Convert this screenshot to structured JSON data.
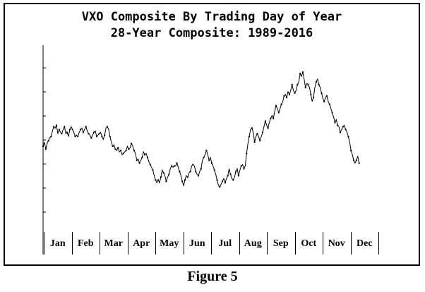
{
  "figure_caption": "Figure 5",
  "chart_data": {
    "type": "line",
    "title": "VXO Composite By Trading Day of Year",
    "subtitle": "28-Year Composite: 1989-2016",
    "xlabel": "",
    "ylabel": "",
    "categories": [
      "Jan",
      "Feb",
      "Mar",
      "Apr",
      "May",
      "Jun",
      "Jul",
      "Aug",
      "Sep",
      "Oct",
      "Nov",
      "Dec"
    ],
    "x_unit": "trading day of year",
    "xlim": [
      1,
      252
    ],
    "ylim": [
      0,
      100
    ],
    "grid": false,
    "legend": "none",
    "line_color": "#000000",
    "series": [
      {
        "values": [
          [
            1,
            48
          ],
          [
            2,
            51
          ],
          [
            3,
            46
          ],
          [
            4,
            50
          ],
          [
            5,
            52
          ],
          [
            6,
            54
          ],
          [
            7,
            55
          ],
          [
            8,
            59
          ],
          [
            9,
            62
          ],
          [
            10,
            61
          ],
          [
            11,
            63
          ],
          [
            12,
            57
          ],
          [
            13,
            60
          ],
          [
            14,
            58
          ],
          [
            15,
            57
          ],
          [
            16,
            60
          ],
          [
            17,
            62
          ],
          [
            18,
            57
          ],
          [
            19,
            58
          ],
          [
            20,
            55
          ],
          [
            21,
            60
          ],
          [
            22,
            62
          ],
          [
            23,
            60
          ],
          [
            24,
            58
          ],
          [
            25,
            55
          ],
          [
            26,
            56
          ],
          [
            27,
            55
          ],
          [
            28,
            58
          ],
          [
            29,
            60
          ],
          [
            30,
            61
          ],
          [
            31,
            58
          ],
          [
            32,
            60
          ],
          [
            33,
            62
          ],
          [
            34,
            59
          ],
          [
            35,
            57
          ],
          [
            36,
            56
          ],
          [
            37,
            54
          ],
          [
            38,
            56
          ],
          [
            39,
            58
          ],
          [
            40,
            59
          ],
          [
            41,
            55
          ],
          [
            42,
            56
          ],
          [
            43,
            57
          ],
          [
            44,
            58
          ],
          [
            45,
            55
          ],
          [
            46,
            53
          ],
          [
            47,
            56
          ],
          [
            48,
            61
          ],
          [
            49,
            62
          ],
          [
            50,
            60
          ],
          [
            51,
            55
          ],
          [
            52,
            51
          ],
          [
            53,
            48
          ],
          [
            54,
            49
          ],
          [
            55,
            46
          ],
          [
            56,
            45
          ],
          [
            57,
            47
          ],
          [
            58,
            44
          ],
          [
            59,
            45
          ],
          [
            60,
            42
          ],
          [
            61,
            43
          ],
          [
            62,
            44
          ],
          [
            63,
            45
          ],
          [
            64,
            48
          ],
          [
            65,
            46
          ],
          [
            66,
            47
          ],
          [
            67,
            50
          ],
          [
            68,
            48
          ],
          [
            69,
            45
          ],
          [
            70,
            43
          ],
          [
            71,
            38
          ],
          [
            72,
            39
          ],
          [
            73,
            36
          ],
          [
            74,
            38
          ],
          [
            75,
            40
          ],
          [
            76,
            44
          ],
          [
            77,
            42
          ],
          [
            78,
            43
          ],
          [
            79,
            40
          ],
          [
            80,
            37
          ],
          [
            81,
            35
          ],
          [
            82,
            33
          ],
          [
            83,
            31
          ],
          [
            84,
            27
          ],
          [
            85,
            24
          ],
          [
            86,
            22
          ],
          [
            87,
            24
          ],
          [
            88,
            22
          ],
          [
            89,
            26
          ],
          [
            90,
            31
          ],
          [
            91,
            29
          ],
          [
            92,
            27
          ],
          [
            93,
            23
          ],
          [
            94,
            26
          ],
          [
            95,
            28
          ],
          [
            96,
            32
          ],
          [
            97,
            34
          ],
          [
            98,
            33
          ],
          [
            99,
            34
          ],
          [
            100,
            34
          ],
          [
            101,
            36
          ],
          [
            102,
            33
          ],
          [
            103,
            30
          ],
          [
            104,
            27
          ],
          [
            105,
            23
          ],
          [
            106,
            20
          ],
          [
            107,
            24
          ],
          [
            108,
            27
          ],
          [
            109,
            26
          ],
          [
            110,
            29
          ],
          [
            111,
            30
          ],
          [
            112,
            34
          ],
          [
            113,
            35
          ],
          [
            114,
            34
          ],
          [
            115,
            30
          ],
          [
            116,
            28
          ],
          [
            117,
            27
          ],
          [
            118,
            30
          ],
          [
            119,
            32
          ],
          [
            120,
            38
          ],
          [
            121,
            40
          ],
          [
            122,
            42
          ],
          [
            123,
            45
          ],
          [
            124,
            42
          ],
          [
            125,
            38
          ],
          [
            126,
            40
          ],
          [
            127,
            36
          ],
          [
            128,
            34
          ],
          [
            129,
            31
          ],
          [
            130,
            28
          ],
          [
            131,
            24
          ],
          [
            132,
            20
          ],
          [
            133,
            19
          ],
          [
            134,
            21
          ],
          [
            135,
            23
          ],
          [
            136,
            25
          ],
          [
            137,
            22
          ],
          [
            138,
            25
          ],
          [
            139,
            27
          ],
          [
            140,
            32
          ],
          [
            141,
            28
          ],
          [
            142,
            25
          ],
          [
            143,
            24
          ],
          [
            144,
            26
          ],
          [
            145,
            30
          ],
          [
            146,
            32
          ],
          [
            147,
            27
          ],
          [
            148,
            31
          ],
          [
            149,
            34
          ],
          [
            150,
            35
          ],
          [
            151,
            32
          ],
          [
            152,
            34
          ],
          [
            153,
            43
          ],
          [
            154,
            50
          ],
          [
            155,
            55
          ],
          [
            156,
            60
          ],
          [
            157,
            61
          ],
          [
            158,
            58
          ],
          [
            159,
            51
          ],
          [
            160,
            55
          ],
          [
            161,
            57
          ],
          [
            162,
            55
          ],
          [
            163,
            52
          ],
          [
            164,
            55
          ],
          [
            165,
            58
          ],
          [
            166,
            62
          ],
          [
            167,
            66
          ],
          [
            168,
            63
          ],
          [
            169,
            61
          ],
          [
            170,
            65
          ],
          [
            171,
            68
          ],
          [
            172,
            70
          ],
          [
            173,
            68
          ],
          [
            174,
            73
          ],
          [
            175,
            77
          ],
          [
            176,
            75
          ],
          [
            177,
            72
          ],
          [
            178,
            75
          ],
          [
            179,
            78
          ],
          [
            180,
            80
          ],
          [
            181,
            84
          ],
          [
            182,
            85
          ],
          [
            183,
            83
          ],
          [
            184,
            87
          ],
          [
            185,
            85
          ],
          [
            186,
            88
          ],
          [
            187,
            92
          ],
          [
            188,
            88
          ],
          [
            189,
            86
          ],
          [
            190,
            88
          ],
          [
            191,
            92
          ],
          [
            192,
            94
          ],
          [
            193,
            100
          ],
          [
            194,
            98
          ],
          [
            195,
            101
          ],
          [
            196,
            96
          ],
          [
            197,
            90
          ],
          [
            198,
            93
          ],
          [
            199,
            92
          ],
          [
            200,
            90
          ],
          [
            201,
            85
          ],
          [
            202,
            80
          ],
          [
            203,
            83
          ],
          [
            204,
            90
          ],
          [
            205,
            94
          ],
          [
            206,
            96
          ],
          [
            207,
            92
          ],
          [
            208,
            90
          ],
          [
            209,
            86
          ],
          [
            210,
            82
          ],
          [
            211,
            80
          ],
          [
            212,
            83
          ],
          [
            213,
            84
          ],
          [
            214,
            80
          ],
          [
            215,
            78
          ],
          [
            216,
            75
          ],
          [
            217,
            72
          ],
          [
            218,
            69
          ],
          [
            219,
            65
          ],
          [
            220,
            67
          ],
          [
            221,
            63
          ],
          [
            222,
            62
          ],
          [
            223,
            58
          ],
          [
            224,
            60
          ],
          [
            225,
            62
          ],
          [
            226,
            63
          ],
          [
            227,
            60
          ],
          [
            228,
            58
          ],
          [
            229,
            55
          ],
          [
            230,
            51
          ],
          [
            231,
            45
          ],
          [
            232,
            42
          ],
          [
            233,
            38
          ],
          [
            234,
            36
          ],
          [
            235,
            38
          ],
          [
            236,
            41
          ],
          [
            237,
            36
          ]
        ]
      }
    ]
  }
}
